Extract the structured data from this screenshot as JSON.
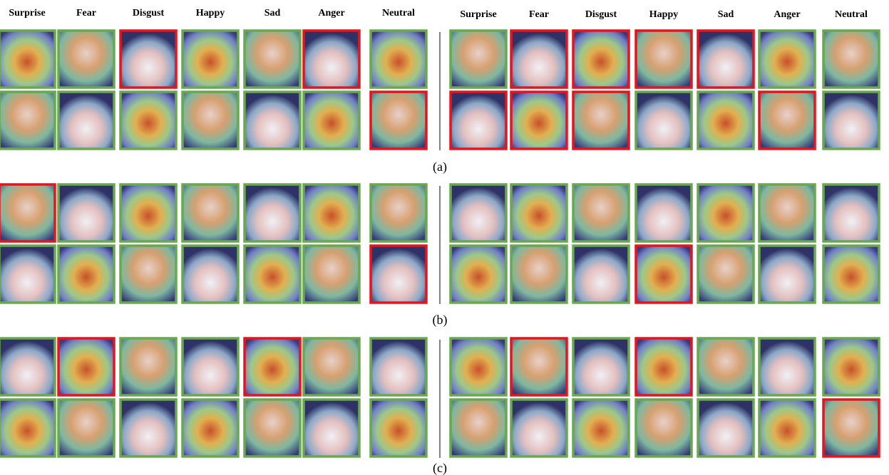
{
  "left_headers": [
    "Surprise",
    "Fear",
    "Disgust",
    "Happy",
    "Sad",
    "Anger",
    "Neutral"
  ],
  "right_headers": [
    "Surprise",
    "Fear",
    "Disgust",
    "Happy",
    "Sad",
    "Anger",
    "Neutral"
  ],
  "panels": [
    {
      "label": "(a)"
    },
    {
      "label": "(b)"
    },
    {
      "label": "(c)"
    }
  ]
}
